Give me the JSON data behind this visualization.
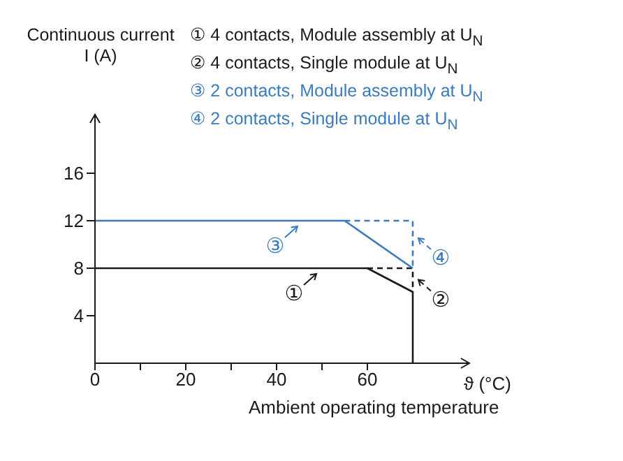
{
  "chart_data": {
    "type": "line",
    "ylabel": "Continuous current I (A)",
    "xlabel": "Ambient operating temperature",
    "marker": "none",
    "legend": "right",
    "xlim": [
      0,
      80
    ],
    "xticks": [
      0,
      {
        "value": 10,
        "label": null
      },
      20,
      {
        "value": 30,
        "label": null
      },
      40,
      {
        "value": 50,
        "label": null
      },
      60
    ],
    "ylim": [
      0,
      20
    ],
    "yticks": [
      4,
      8,
      12,
      16
    ],
    "series": [
      {
        "name": "①",
        "color": "#1a1a1a",
        "line_style": "solid",
        "x": [
          0,
          60,
          70,
          70
        ],
        "values": [
          8,
          8,
          6,
          0
        ]
      },
      {
        "name": "②",
        "color": "#1a1a1a",
        "line_style": "dashed",
        "x": [
          60,
          70,
          70
        ],
        "values": [
          8,
          8,
          6
        ]
      },
      {
        "name": "③",
        "color": "#3a7bbf",
        "line_style": "solid",
        "x": [
          0,
          55,
          70
        ],
        "values": [
          12,
          12,
          8
        ]
      },
      {
        "name": "④",
        "color": "#3a7bbf",
        "line_style": "dashed",
        "x": [
          55,
          70,
          70
        ],
        "values": [
          12,
          12,
          8
        ]
      }
    ],
    "annotations": [
      "① 4 contacts, Module assembly at U$_{N}$",
      "② 4 contacts, Single module at U$_{N}$",
      "③ 2 contacts, Module assembly at U$_{N}$",
      "④ 2 contacts, Single module at U$_{N}$",
      "ϑ (°C)"
    ]
  }
}
